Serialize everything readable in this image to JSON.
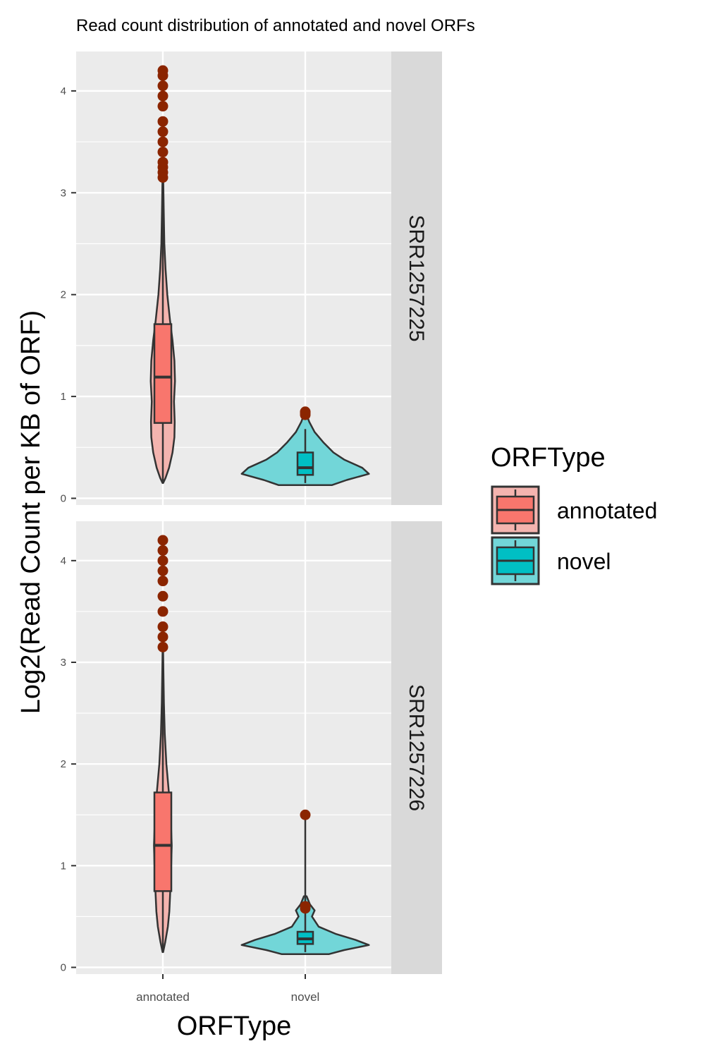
{
  "chart_data": {
    "type": "violin",
    "title": "Read count distribution of annotated and novel ORFs",
    "xlabel": "ORFType",
    "ylabel": "Log2(Read Count per KB of ORF)",
    "categories": [
      "annotated",
      "novel"
    ],
    "ylim": [
      0,
      4.3
    ],
    "y_ticks": [
      0,
      1,
      2,
      3,
      4
    ],
    "grid": true,
    "legend_position": "right",
    "legend": {
      "title": "ORFType",
      "entries": [
        {
          "label": "annotated",
          "box_color": "#F8766D",
          "violin_color": "#F4B4AF"
        },
        {
          "label": "novel",
          "box_color": "#00BFC4",
          "violin_color": "#72D6D8"
        }
      ]
    },
    "colors": {
      "panel_bg": "#EBEBEB",
      "strip_bg": "#D9D9D9",
      "grid": "#FFFFFF",
      "outline": "#333333",
      "outlier": "#8B2500"
    },
    "facets": [
      {
        "label": "SRR1257225",
        "groups": [
          {
            "category": "annotated",
            "box": {
              "whisker_low": 0.15,
              "q1": 0.74,
              "median": 1.19,
              "q3": 1.71,
              "whisker_high": 3.1
            },
            "outliers": [
              3.15,
              3.2,
              3.25,
              3.3,
              3.4,
              3.5,
              3.6,
              3.7,
              3.85,
              3.95,
              4.05,
              4.15,
              4.2
            ],
            "density": [
              [
                0.15,
                0.02
              ],
              [
                0.2,
                0.18
              ],
              [
                0.3,
                0.42
              ],
              [
                0.45,
                0.65
              ],
              [
                0.6,
                0.78
              ],
              [
                0.75,
                0.8
              ],
              [
                0.95,
                0.75
              ],
              [
                1.15,
                0.82
              ],
              [
                1.35,
                0.78
              ],
              [
                1.55,
                0.65
              ],
              [
                1.75,
                0.48
              ],
              [
                2.0,
                0.3
              ],
              [
                2.25,
                0.18
              ],
              [
                2.5,
                0.1
              ],
              [
                2.8,
                0.06
              ],
              [
                3.1,
                0.03
              ],
              [
                3.2,
                0.01
              ]
            ]
          },
          {
            "category": "novel",
            "box": {
              "whisker_low": 0.15,
              "q1": 0.23,
              "median": 0.3,
              "q3": 0.45,
              "whisker_high": 0.68
            },
            "outliers": [
              0.82,
              0.84,
              0.85
            ],
            "density": [
              [
                0.13,
                0.4
              ],
              [
                0.18,
                0.62
              ],
              [
                0.24,
                0.95
              ],
              [
                0.3,
                0.85
              ],
              [
                0.38,
                0.58
              ],
              [
                0.45,
                0.42
              ],
              [
                0.55,
                0.27
              ],
              [
                0.65,
                0.14
              ],
              [
                0.75,
                0.06
              ],
              [
                0.82,
                0.02
              ]
            ]
          }
        ]
      },
      {
        "label": "SRR1257226",
        "groups": [
          {
            "category": "annotated",
            "box": {
              "whisker_low": 0.15,
              "q1": 0.75,
              "median": 1.2,
              "q3": 1.72,
              "whisker_high": 3.1
            },
            "outliers": [
              3.15,
              3.25,
              3.35,
              3.5,
              3.65,
              3.8,
              3.9,
              4.0,
              4.1,
              4.2
            ],
            "density": [
              [
                0.15,
                0.02
              ],
              [
                0.25,
                0.16
              ],
              [
                0.4,
                0.34
              ],
              [
                0.55,
                0.44
              ],
              [
                0.75,
                0.5
              ],
              [
                1.0,
                0.56
              ],
              [
                1.2,
                0.6
              ],
              [
                1.45,
                0.54
              ],
              [
                1.7,
                0.42
              ],
              [
                2.0,
                0.24
              ],
              [
                2.3,
                0.13
              ],
              [
                2.6,
                0.07
              ],
              [
                2.9,
                0.04
              ],
              [
                3.1,
                0.02
              ],
              [
                3.15,
                0.01
              ]
            ]
          },
          {
            "category": "novel",
            "box": {
              "whisker_low": 0.15,
              "q1": 0.23,
              "median": 0.28,
              "q3": 0.35,
              "whisker_high": 1.5
            },
            "outliers": [
              0.58,
              0.6,
              1.5
            ],
            "density": [
              [
                0.13,
                0.35
              ],
              [
                0.17,
                0.58
              ],
              [
                0.22,
                0.95
              ],
              [
                0.27,
                0.75
              ],
              [
                0.33,
                0.45
              ],
              [
                0.4,
                0.2
              ],
              [
                0.46,
                0.14
              ],
              [
                0.5,
                0.1
              ],
              [
                0.56,
                0.14
              ],
              [
                0.62,
                0.07
              ],
              [
                0.7,
                0.02
              ]
            ]
          }
        ]
      }
    ]
  }
}
